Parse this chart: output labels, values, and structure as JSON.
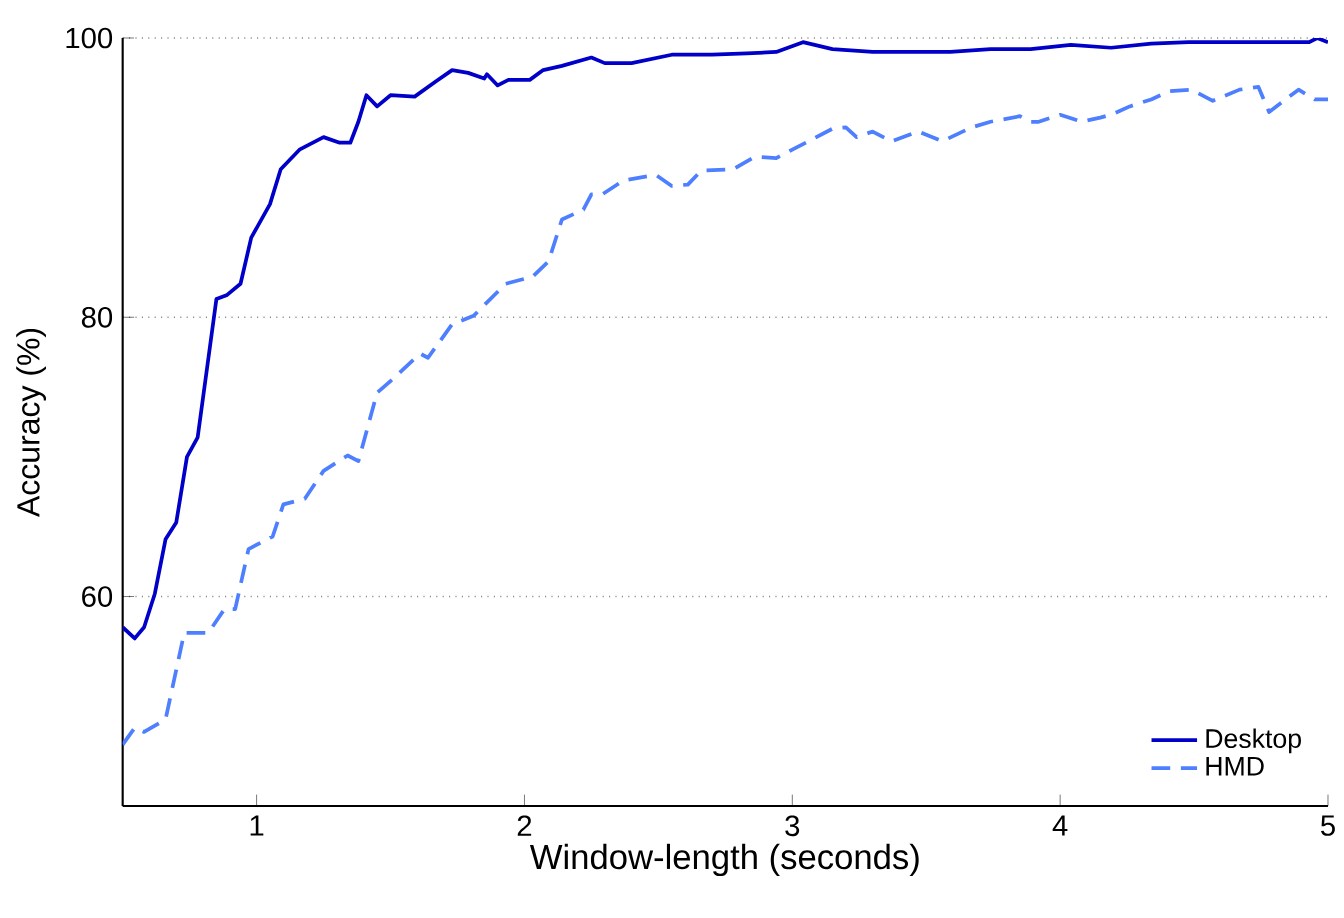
{
  "chart_data": {
    "type": "line",
    "xlabel": "Window-length (seconds)",
    "ylabel": "Accuracy (%)",
    "xlim": [
      0.5,
      5
    ],
    "ylim": [
      45,
      100
    ],
    "xticks": [
      1,
      2,
      3,
      4,
      5
    ],
    "yticks": [
      60,
      80,
      100
    ],
    "grid": "y",
    "legend": "bottom right",
    "series": [
      {
        "name": "Desktop",
        "color": "#0000c8",
        "line_style": "solid",
        "x": [
          0.5,
          0.545,
          0.58,
          0.62,
          0.66,
          0.7,
          0.74,
          0.78,
          0.85,
          0.89,
          0.94,
          0.98,
          1.05,
          1.09,
          1.16,
          1.25,
          1.31,
          1.35,
          1.38,
          1.41,
          1.45,
          1.5,
          1.59,
          1.67,
          1.73,
          1.79,
          1.85,
          1.86,
          1.9,
          1.94,
          2.02,
          2.07,
          2.14,
          2.25,
          2.3,
          2.4,
          2.55,
          2.7,
          2.83,
          2.94,
          3.04,
          3.15,
          3.3,
          3.59,
          3.74,
          3.89,
          4.04,
          4.19,
          4.34,
          4.48,
          4.93,
          4.96,
          5.0
        ],
        "values": [
          57.8,
          57.0,
          57.8,
          60.2,
          64.1,
          65.3,
          70.0,
          71.4,
          81.3,
          81.6,
          82.4,
          85.7,
          88.1,
          90.6,
          92.0,
          92.9,
          92.5,
          92.5,
          94.0,
          95.9,
          95.1,
          95.9,
          95.8,
          96.9,
          97.7,
          97.5,
          97.1,
          97.4,
          96.6,
          97.0,
          97.0,
          97.7,
          98.0,
          98.6,
          98.2,
          98.2,
          98.8,
          98.8,
          98.9,
          99.0,
          99.7,
          99.2,
          99.0,
          99.0,
          99.2,
          99.2,
          99.5,
          99.3,
          99.6,
          99.7,
          99.7,
          100,
          99.7
        ]
      },
      {
        "name": "HMD",
        "color": "#4d7fff",
        "line_style": "dashed",
        "x": [
          0.5,
          0.545,
          0.58,
          0.66,
          0.73,
          0.82,
          0.88,
          0.92,
          0.97,
          1.06,
          1.1,
          1.18,
          1.25,
          1.34,
          1.38,
          1.45,
          1.51,
          1.61,
          1.64,
          1.73,
          1.81,
          1.93,
          1.99,
          2.03,
          2.09,
          2.14,
          2.22,
          2.25,
          2.29,
          2.37,
          2.49,
          2.55,
          2.61,
          2.66,
          2.78,
          2.86,
          2.94,
          3.04,
          3.15,
          3.2,
          3.24,
          3.3,
          3.37,
          3.47,
          3.56,
          3.67,
          3.74,
          3.85,
          3.89,
          3.92,
          4.0,
          4.08,
          4.15,
          4.19,
          4.26,
          4.34,
          4.41,
          4.49,
          4.57,
          4.67,
          4.74,
          4.78,
          4.89,
          4.95,
          5.0
        ],
        "values": [
          49.4,
          50.6,
          50.3,
          51.2,
          57.4,
          57.4,
          59.1,
          59.1,
          63.4,
          64.3,
          66.6,
          67.0,
          69.0,
          70.1,
          69.7,
          74.6,
          75.6,
          77.4,
          77.1,
          79.5,
          80.1,
          82.4,
          82.7,
          82.9,
          84.0,
          87.0,
          87.7,
          88.8,
          88.8,
          89.8,
          90.2,
          89.4,
          89.5,
          90.5,
          90.6,
          91.5,
          91.4,
          92.4,
          93.5,
          93.6,
          92.9,
          93.3,
          92.6,
          93.3,
          92.6,
          93.6,
          94.0,
          94.4,
          94.0,
          94.0,
          94.5,
          94.0,
          94.3,
          94.5,
          95.1,
          95.6,
          96.2,
          96.3,
          95.5,
          96.3,
          96.5,
          94.7,
          96.3,
          95.6,
          95.6
        ]
      }
    ]
  }
}
